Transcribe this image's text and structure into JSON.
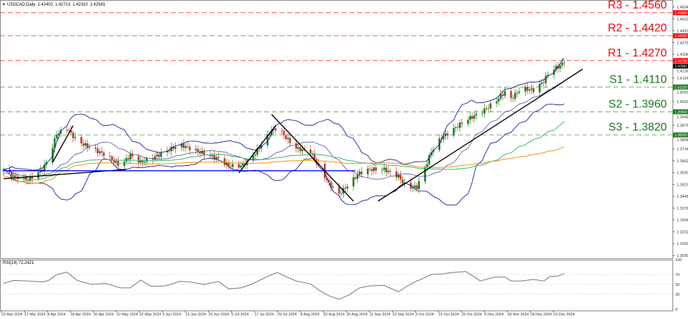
{
  "header": {
    "symbol": "USDCAD,Daily",
    "open": "1.42402",
    "high": "1.42713",
    "low": "1.42310",
    "close": "1.42581"
  },
  "rsi_header": "RSI(14) 72.2421",
  "chart_data": [
    {
      "type": "candlestick",
      "title": "USDCAD,Daily",
      "ylim": [
        1.309,
        1.4594
      ],
      "y_ticks": [
        "1.45940",
        "1.45220",
        "1.44500",
        "1.43780",
        "1.43060",
        "1.42360",
        "1.41640",
        "1.40920",
        "1.40200",
        "1.39480",
        "1.38760",
        "1.38040",
        "1.37340",
        "1.36620",
        "1.35900",
        "1.35200",
        "1.34480",
        "1.33760",
        "1.33040",
        "1.32320",
        "1.31600",
        "1.30900"
      ],
      "x_ticks": [
        "15 Mar 2024",
        "27 Mar 2024",
        "8 Apr 2024",
        "18 Apr 2024",
        "30 Apr 2024",
        "10 May 2024",
        "22 May 2024",
        "3 Jun 2024",
        "13 Jun 2024",
        "25 Jun 2024",
        "5 Jul 2024",
        "17 Jul 2024",
        "29 Jul 2024",
        "8 Aug 2024",
        "20 Aug 2024",
        "30 Aug 2024",
        "11 Sep 2024",
        "23 Sep 2024",
        "3 Oct 2024",
        "15 Oct 2024",
        "25 Oct 2024",
        "6 Nov 2024",
        "18 Nov 2024",
        "28 Nov 2024",
        "10 Dec 2024"
      ],
      "closes": [
        {
          "date": "2024-03-15",
          "close": 1.3611
        },
        {
          "date": "2024-03-20",
          "close": 1.3568
        },
        {
          "date": "2024-03-27",
          "close": 1.3547
        },
        {
          "date": "2024-04-03",
          "close": 1.3611
        },
        {
          "date": "2024-04-06",
          "close": 1.3675
        },
        {
          "date": "2024-04-10",
          "close": 1.3825
        },
        {
          "date": "2024-04-15",
          "close": 1.3859
        },
        {
          "date": "2024-04-20",
          "close": 1.3782
        },
        {
          "date": "2024-04-27",
          "close": 1.3739
        },
        {
          "date": "2024-05-04",
          "close": 1.3697
        },
        {
          "date": "2024-05-11",
          "close": 1.3632
        },
        {
          "date": "2024-05-16",
          "close": 1.3697
        },
        {
          "date": "2024-05-21",
          "close": 1.3654
        },
        {
          "date": "2024-05-26",
          "close": 1.3675
        },
        {
          "date": "2024-06-02",
          "close": 1.3718
        },
        {
          "date": "2024-06-09",
          "close": 1.3761
        },
        {
          "date": "2024-06-14",
          "close": 1.3739
        },
        {
          "date": "2024-06-21",
          "close": 1.3705
        },
        {
          "date": "2024-06-28",
          "close": 1.3675
        },
        {
          "date": "2024-07-03",
          "close": 1.3632
        },
        {
          "date": "2024-07-09",
          "close": 1.3632
        },
        {
          "date": "2024-07-14",
          "close": 1.3675
        },
        {
          "date": "2024-07-19",
          "close": 1.3761
        },
        {
          "date": "2024-07-24",
          "close": 1.3846
        },
        {
          "date": "2024-07-27",
          "close": 1.3867
        },
        {
          "date": "2024-07-31",
          "close": 1.3803
        },
        {
          "date": "2024-08-05",
          "close": 1.3739
        },
        {
          "date": "2024-08-12",
          "close": 1.3718
        },
        {
          "date": "2024-08-17",
          "close": 1.3611
        },
        {
          "date": "2024-08-21",
          "close": 1.3526
        },
        {
          "date": "2024-08-26",
          "close": 1.3462
        },
        {
          "date": "2024-08-31",
          "close": 1.3526
        },
        {
          "date": "2024-09-05",
          "close": 1.359
        },
        {
          "date": "2024-09-10",
          "close": 1.3611
        },
        {
          "date": "2024-09-17",
          "close": 1.3611
        },
        {
          "date": "2024-09-24",
          "close": 1.3568
        },
        {
          "date": "2024-09-28",
          "close": 1.3504
        },
        {
          "date": "2024-10-03",
          "close": 1.3504
        },
        {
          "date": "2024-10-06",
          "close": 1.359
        },
        {
          "date": "2024-10-10",
          "close": 1.3718
        },
        {
          "date": "2024-10-15",
          "close": 1.3803
        },
        {
          "date": "2024-10-20",
          "close": 1.3846
        },
        {
          "date": "2024-10-27",
          "close": 1.391
        },
        {
          "date": "2024-11-03",
          "close": 1.3953
        },
        {
          "date": "2024-11-10",
          "close": 1.4017
        },
        {
          "date": "2024-11-15",
          "close": 1.4081
        },
        {
          "date": "2024-11-18",
          "close": 1.4038
        },
        {
          "date": "2024-11-23",
          "close": 1.4103
        },
        {
          "date": "2024-11-29",
          "close": 1.409
        },
        {
          "date": "2024-12-04",
          "close": 1.4145
        },
        {
          "date": "2024-12-07",
          "close": 1.4209
        },
        {
          "date": "2024-12-11",
          "close": 1.4231
        },
        {
          "date": "2024-12-14",
          "close": 1.42581
        }
      ],
      "levels": [
        {
          "label": "R3 - 1.4560",
          "price": 1.456,
          "tag": "1.45600",
          "color": "#ff0000"
        },
        {
          "label": "R2 - 1.4420",
          "price": 1.442,
          "tag": "1.44200",
          "color": "#ff0000"
        },
        {
          "label": "R1 - 1.4270",
          "price": 1.427,
          "tag": "1.42700",
          "color": "#ff0000"
        },
        {
          "label": "S1 - 1.4110",
          "price": 1.411,
          "tag": "1.41100",
          "color": "#1a7a1a"
        },
        {
          "label": "S2 - 1.3960",
          "price": 1.396,
          "tag": "1.39600",
          "color": "#1a7a1a"
        },
        {
          "label": "S3 - 1.3820",
          "price": 1.382,
          "tag": "1.38200",
          "color": "#1a7a1a"
        }
      ],
      "current_price_tag": "1.42581",
      "trendlines": [
        {
          "from": [
            "2024-03-15",
            1.3555
          ],
          "to": [
            "2024-05-14",
            1.3611
          ],
          "color": "#000000"
        },
        {
          "from": [
            "2024-04-08",
            1.3654
          ],
          "to": [
            "2024-04-18",
            1.3876
          ],
          "color": "#000000"
        },
        {
          "from": [
            "2024-07-08",
            1.359
          ],
          "to": [
            "2024-07-26",
            1.3876
          ],
          "color": "#000000"
        },
        {
          "from": [
            "2024-07-24",
            1.3944
          ],
          "to": [
            "2024-09-02",
            1.3419
          ],
          "color": "#000000"
        },
        {
          "from": [
            "2024-09-14",
            1.3419
          ],
          "to": [
            "2024-12-23",
            1.4218
          ],
          "color": "#000000"
        },
        {
          "from": [
            "2024-03-15",
            1.3603
          ],
          "to": [
            "2024-09-03",
            1.3603
          ],
          "color": "#0000ff"
        }
      ],
      "indicators": {
        "bollinger_color": "#1c1c8c",
        "ma_mid_color": "#3cb371",
        "ma_slow_color": "#ff8c00",
        "up_color": "#1e7b1e",
        "down_color": "#c0392b"
      }
    },
    {
      "type": "line",
      "title": "RSI(14) 72.2421",
      "ylim": [
        0,
        100
      ],
      "y_ticks": [
        "100",
        "70",
        "50",
        "30",
        "0"
      ],
      "levels": [
        70,
        50,
        30
      ],
      "values": [
        52,
        58,
        57,
        55,
        58,
        70,
        75,
        58,
        50,
        52,
        43,
        43,
        59,
        46,
        47,
        56,
        55,
        50,
        56,
        41,
        43,
        50,
        60,
        70,
        74,
        66,
        57,
        51,
        36,
        27,
        20,
        29,
        43,
        47,
        48,
        35,
        46,
        57,
        62,
        70,
        71,
        74,
        76,
        57,
        65,
        65,
        57,
        57,
        60,
        57,
        66,
        67,
        72.24
      ]
    }
  ]
}
